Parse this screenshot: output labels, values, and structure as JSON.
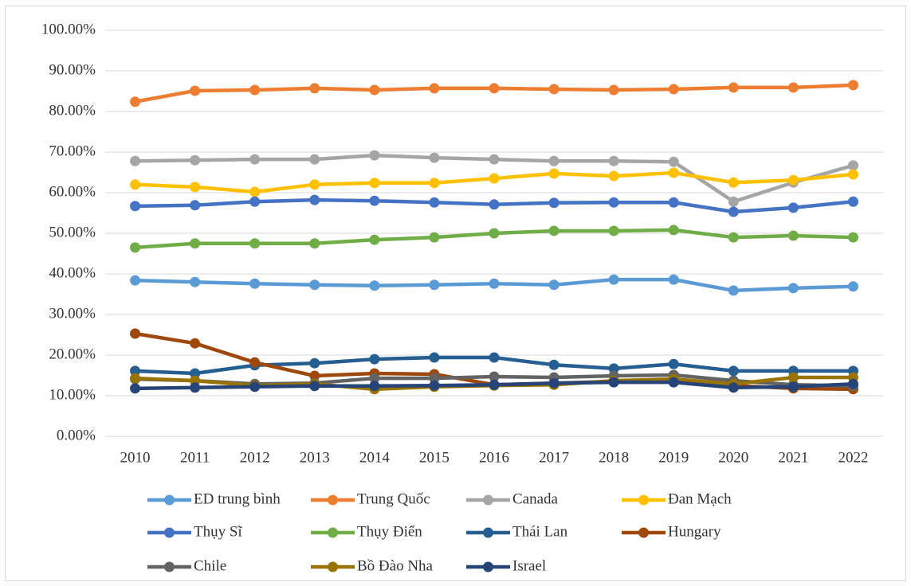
{
  "chart_data": {
    "type": "line",
    "categories": [
      "2010",
      "2011",
      "2012",
      "2013",
      "2014",
      "2015",
      "2016",
      "2017",
      "2018",
      "2019",
      "2020",
      "2021",
      "2022"
    ],
    "ylim": [
      0,
      100
    ],
    "yticks": [
      {
        "value": 0,
        "label": "0.00%"
      },
      {
        "value": 10,
        "label": "10.00%"
      },
      {
        "value": 20,
        "label": "20.00%"
      },
      {
        "value": 30,
        "label": "30.00%"
      },
      {
        "value": 40,
        "label": "40.00%"
      },
      {
        "value": 50,
        "label": "50.00%"
      },
      {
        "value": 60,
        "label": "60.00%"
      },
      {
        "value": 70,
        "label": "70.00%"
      },
      {
        "value": 80,
        "label": "80.00%"
      },
      {
        "value": 90,
        "label": "90.00%"
      },
      {
        "value": 100,
        "label": "100.00%"
      }
    ],
    "grid": true,
    "legend": "bottom",
    "series": [
      {
        "name": "ED trung bình",
        "color": "#5B9BD5",
        "values": [
          38.4,
          38.0,
          37.6,
          37.3,
          37.1,
          37.3,
          37.6,
          37.3,
          38.6,
          38.6,
          35.9,
          36.5,
          36.9
        ]
      },
      {
        "name": "Trung Quốc",
        "color": "#ED7D31",
        "values": [
          82.4,
          85.1,
          85.3,
          85.7,
          85.3,
          85.7,
          85.7,
          85.5,
          85.3,
          85.5,
          85.9,
          85.9,
          86.5
        ]
      },
      {
        "name": "Canada",
        "color": "#A5A5A5",
        "values": [
          67.8,
          68.0,
          68.2,
          68.2,
          69.2,
          68.6,
          68.2,
          67.8,
          67.8,
          67.6,
          57.8,
          62.5,
          66.7
        ]
      },
      {
        "name": "Đan Mạch",
        "color": "#FFC000",
        "values": [
          62.0,
          61.4,
          60.2,
          62.0,
          62.4,
          62.4,
          63.5,
          64.7,
          64.1,
          64.9,
          62.5,
          63.1,
          64.5
        ]
      },
      {
        "name": "Thụy Sĩ",
        "color": "#4472C4",
        "values": [
          56.7,
          56.9,
          57.8,
          58.2,
          58.0,
          57.6,
          57.1,
          57.5,
          57.6,
          57.6,
          55.3,
          56.3,
          57.8
        ]
      },
      {
        "name": "Thụy Điển",
        "color": "#70AD47",
        "values": [
          46.5,
          47.5,
          47.5,
          47.5,
          48.4,
          49.0,
          50.0,
          50.6,
          50.6,
          50.8,
          49.0,
          49.4,
          49.0
        ]
      },
      {
        "name": "Thái Lan",
        "color": "#255E91",
        "values": [
          16.1,
          15.5,
          17.5,
          18.0,
          19.0,
          19.4,
          19.4,
          17.6,
          16.7,
          17.8,
          16.1,
          16.1,
          16.1
        ]
      },
      {
        "name": "Hungary",
        "color": "#9E480E",
        "values": [
          25.3,
          22.9,
          18.2,
          14.9,
          15.5,
          15.3,
          12.7,
          13.1,
          13.5,
          13.5,
          12.5,
          11.8,
          11.6
        ]
      },
      {
        "name": "Chile",
        "color": "#636363",
        "values": [
          14.1,
          13.7,
          12.9,
          13.1,
          14.3,
          14.3,
          14.7,
          14.5,
          14.9,
          15.1,
          13.7,
          12.7,
          12.4
        ]
      },
      {
        "name": "Bồ Đào Nha",
        "color": "#997300",
        "values": [
          14.3,
          13.7,
          12.5,
          12.9,
          11.6,
          12.2,
          12.5,
          12.7,
          13.7,
          14.1,
          12.9,
          14.5,
          14.5
        ]
      },
      {
        "name": "Israel",
        "color": "#264478",
        "values": [
          11.8,
          12.0,
          12.2,
          12.4,
          12.4,
          12.5,
          12.7,
          13.1,
          13.3,
          13.3,
          12.0,
          12.2,
          12.9
        ]
      }
    ]
  }
}
